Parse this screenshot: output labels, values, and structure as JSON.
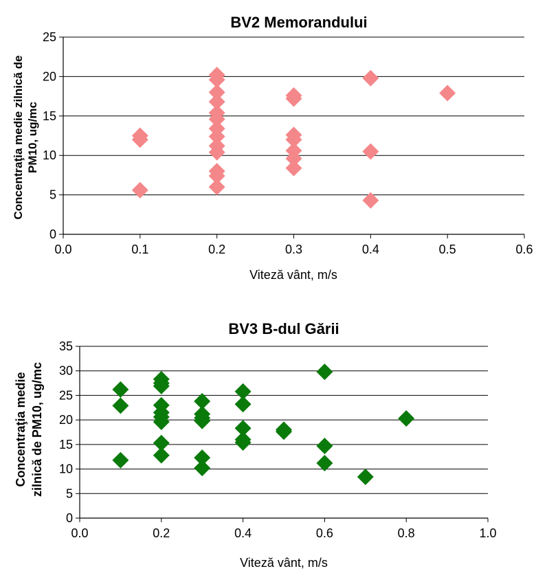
{
  "chart_data": [
    {
      "type": "scatter",
      "title": "BV2 Memorandului",
      "xlabel": "Viteză vânt, m/s",
      "ylabel_lines": [
        "Concentraţia medie zilnică de",
        "PM10, ug/mc"
      ],
      "xlim": [
        0,
        0.6
      ],
      "ylim": [
        0,
        25
      ],
      "xticks": [
        "0.0",
        "0.1",
        "0.2",
        "0.3",
        "0.4",
        "0.5",
        "0.6"
      ],
      "yticks": [
        "0",
        "5",
        "10",
        "15",
        "20",
        "25"
      ],
      "grid": "horizontal",
      "marker": "diamond",
      "color": "#F4878A",
      "points": [
        {
          "x": 0.1,
          "y": 12.5
        },
        {
          "x": 0.1,
          "y": 12.0
        },
        {
          "x": 0.1,
          "y": 5.6
        },
        {
          "x": 0.2,
          "y": 20.2
        },
        {
          "x": 0.2,
          "y": 19.6
        },
        {
          "x": 0.2,
          "y": 18.0
        },
        {
          "x": 0.2,
          "y": 16.8
        },
        {
          "x": 0.2,
          "y": 15.4
        },
        {
          "x": 0.2,
          "y": 14.6
        },
        {
          "x": 0.2,
          "y": 13.4
        },
        {
          "x": 0.2,
          "y": 12.4
        },
        {
          "x": 0.2,
          "y": 11.2
        },
        {
          "x": 0.2,
          "y": 10.4
        },
        {
          "x": 0.2,
          "y": 8.0
        },
        {
          "x": 0.2,
          "y": 7.4
        },
        {
          "x": 0.2,
          "y": 6.0
        },
        {
          "x": 0.3,
          "y": 17.6
        },
        {
          "x": 0.3,
          "y": 17.2
        },
        {
          "x": 0.3,
          "y": 12.6
        },
        {
          "x": 0.3,
          "y": 12.0
        },
        {
          "x": 0.3,
          "y": 10.6
        },
        {
          "x": 0.3,
          "y": 9.6
        },
        {
          "x": 0.3,
          "y": 8.4
        },
        {
          "x": 0.4,
          "y": 19.8
        },
        {
          "x": 0.4,
          "y": 10.5
        },
        {
          "x": 0.4,
          "y": 4.3
        },
        {
          "x": 0.5,
          "y": 17.9
        }
      ]
    },
    {
      "type": "scatter",
      "title": "BV3 B-dul Gării",
      "xlabel": "Viteză vânt, m/s",
      "ylabel_lines": [
        "Concentraţia medie",
        "zilnică de PM10, ug/mc"
      ],
      "xlim": [
        0,
        1.0
      ],
      "ylim": [
        0,
        35
      ],
      "xticks": [
        "0.0",
        "0.2",
        "0.4",
        "0.6",
        "0.8",
        "1.0"
      ],
      "yticks": [
        "0",
        "5",
        "10",
        "15",
        "20",
        "25",
        "30",
        "35"
      ],
      "grid": "horizontal",
      "marker": "diamond",
      "color": "#0A7A0A",
      "points": [
        {
          "x": 0.1,
          "y": 26.2
        },
        {
          "x": 0.1,
          "y": 22.9
        },
        {
          "x": 0.1,
          "y": 11.8
        },
        {
          "x": 0.2,
          "y": 28.3
        },
        {
          "x": 0.2,
          "y": 27.5
        },
        {
          "x": 0.2,
          "y": 26.9
        },
        {
          "x": 0.2,
          "y": 23.0
        },
        {
          "x": 0.2,
          "y": 21.5
        },
        {
          "x": 0.2,
          "y": 20.6
        },
        {
          "x": 0.2,
          "y": 19.6
        },
        {
          "x": 0.2,
          "y": 15.3
        },
        {
          "x": 0.2,
          "y": 12.8
        },
        {
          "x": 0.3,
          "y": 23.8
        },
        {
          "x": 0.3,
          "y": 21.2
        },
        {
          "x": 0.3,
          "y": 20.4
        },
        {
          "x": 0.3,
          "y": 19.8
        },
        {
          "x": 0.3,
          "y": 12.3
        },
        {
          "x": 0.3,
          "y": 10.2
        },
        {
          "x": 0.4,
          "y": 25.8
        },
        {
          "x": 0.4,
          "y": 23.2
        },
        {
          "x": 0.4,
          "y": 18.3
        },
        {
          "x": 0.4,
          "y": 16.0
        },
        {
          "x": 0.4,
          "y": 15.4
        },
        {
          "x": 0.5,
          "y": 18.0
        },
        {
          "x": 0.5,
          "y": 17.6
        },
        {
          "x": 0.6,
          "y": 29.8
        },
        {
          "x": 0.6,
          "y": 14.7
        },
        {
          "x": 0.6,
          "y": 11.2
        },
        {
          "x": 0.7,
          "y": 8.4
        },
        {
          "x": 0.8,
          "y": 20.3
        }
      ]
    }
  ]
}
